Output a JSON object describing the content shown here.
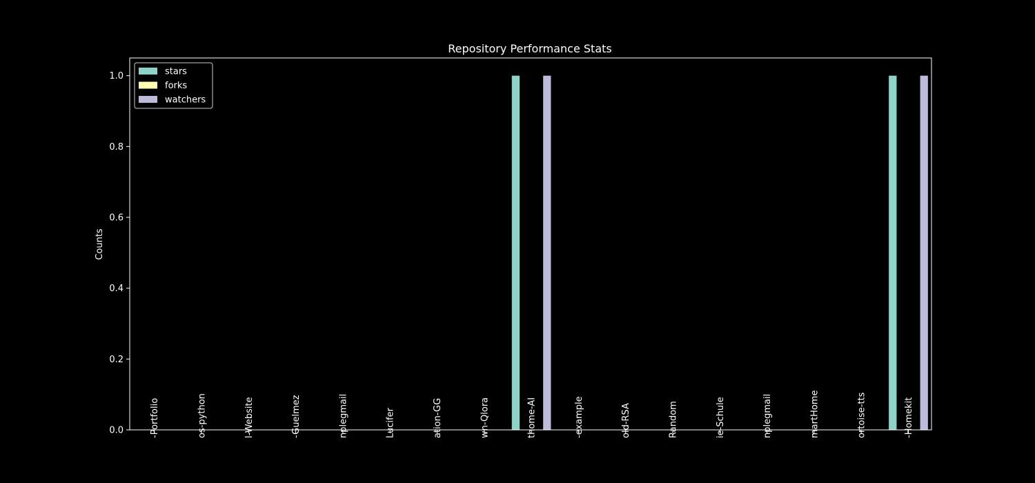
{
  "chart_data": {
    "type": "bar",
    "title": "Repository Performance Stats",
    "xlabel": "",
    "ylabel": "Counts",
    "ylim": [
      0,
      1.05
    ],
    "yticks": [
      "0.0",
      "0.2",
      "0.4",
      "0.6",
      "0.8",
      "1.0"
    ],
    "categories": [
      "-Portfolio",
      "os-python",
      "l-Website",
      "-Guelmez",
      "nplegmail",
      "Lucifer",
      "ation-GG",
      "wn-Qlora",
      "thome-AI",
      "-example",
      "old-RSA",
      "Random",
      "ie-Schule",
      "nplegmail",
      "martHome",
      "ortoise-tts",
      "-Homekit"
    ],
    "series": [
      {
        "name": "stars",
        "color": "#8dd3c7",
        "values": [
          0,
          0,
          0,
          0,
          0,
          0,
          0,
          0,
          1,
          0,
          0,
          0,
          0,
          0,
          0,
          0,
          1
        ]
      },
      {
        "name": "forks",
        "color": "#ffffb3",
        "values": [
          0,
          0,
          0,
          0,
          0,
          0,
          0,
          0,
          0,
          0,
          0,
          0,
          0,
          0,
          0,
          0,
          0
        ]
      },
      {
        "name": "watchers",
        "color": "#bebada",
        "values": [
          0,
          0,
          0,
          0,
          0,
          0,
          0,
          0,
          1,
          0,
          0,
          0,
          0,
          0,
          0,
          0,
          1
        ]
      }
    ],
    "legend": "top-left",
    "grid": false
  }
}
